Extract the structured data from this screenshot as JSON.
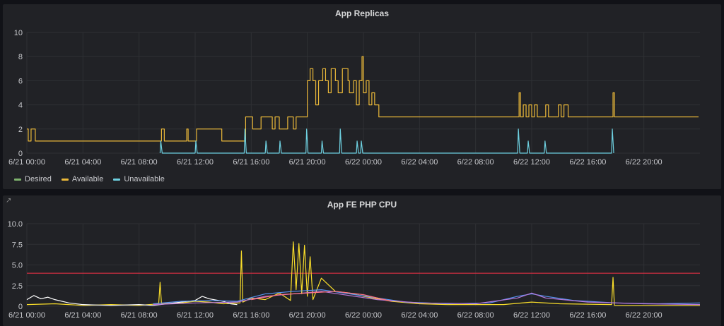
{
  "chart_data": [
    {
      "type": "line",
      "title": "App Replicas",
      "x_tick_labels": [
        "6/21 00:00",
        "6/21 04:00",
        "6/21 08:00",
        "6/21 12:00",
        "6/21 16:00",
        "6/21 20:00",
        "6/22 00:00",
        "6/22 04:00",
        "6/22 08:00",
        "6/22 12:00",
        "6/22 16:00",
        "6/22 20:00"
      ],
      "x_range_hours": [
        0,
        48
      ],
      "ylim": [
        0,
        10
      ],
      "y_ticks": [
        0,
        2,
        4,
        6,
        8,
        10
      ],
      "grid": true,
      "legend": "bottom-left",
      "series": [
        {
          "name": "Desired",
          "color": "#7eb26d",
          "values": []
        },
        {
          "name": "Available",
          "color": "#eab839",
          "points": [
            [
              0,
              2
            ],
            [
              0.1,
              1
            ],
            [
              0.3,
              2
            ],
            [
              0.6,
              1
            ],
            [
              9.5,
              1
            ],
            [
              9.6,
              2
            ],
            [
              9.8,
              1
            ],
            [
              11.3,
              1
            ],
            [
              11.4,
              2
            ],
            [
              11.5,
              1
            ],
            [
              12.0,
              1
            ],
            [
              12.1,
              2
            ],
            [
              13.8,
              2
            ],
            [
              13.9,
              1
            ],
            [
              15.5,
              1
            ],
            [
              15.6,
              3
            ],
            [
              16.1,
              2
            ],
            [
              16.6,
              2
            ],
            [
              16.7,
              3
            ],
            [
              17.5,
              2
            ],
            [
              17.7,
              3
            ],
            [
              18.0,
              2
            ],
            [
              18.6,
              3
            ],
            [
              19.0,
              2
            ],
            [
              19.2,
              3
            ],
            [
              19.9,
              3
            ],
            [
              20.0,
              6
            ],
            [
              20.2,
              7
            ],
            [
              20.4,
              6
            ],
            [
              20.6,
              4
            ],
            [
              20.8,
              6
            ],
            [
              21.1,
              7
            ],
            [
              21.3,
              6
            ],
            [
              21.5,
              5
            ],
            [
              21.7,
              7
            ],
            [
              22.0,
              6
            ],
            [
              22.2,
              5
            ],
            [
              22.5,
              7
            ],
            [
              22.9,
              6
            ],
            [
              23.0,
              5
            ],
            [
              23.3,
              6
            ],
            [
              23.5,
              4
            ],
            [
              23.7,
              6
            ],
            [
              23.9,
              8
            ],
            [
              24.0,
              5
            ],
            [
              24.2,
              6
            ],
            [
              24.4,
              4
            ],
            [
              24.6,
              5
            ],
            [
              24.8,
              4
            ],
            [
              25.1,
              3
            ],
            [
              35.0,
              3
            ],
            [
              35.1,
              5
            ],
            [
              35.2,
              3
            ],
            [
              35.4,
              4
            ],
            [
              35.6,
              3
            ],
            [
              35.8,
              4
            ],
            [
              36.0,
              3
            ],
            [
              36.2,
              4
            ],
            [
              36.4,
              3
            ],
            [
              37.0,
              4
            ],
            [
              37.2,
              3
            ],
            [
              37.9,
              4
            ],
            [
              38.1,
              3
            ],
            [
              38.3,
              4
            ],
            [
              38.6,
              3
            ],
            [
              41.7,
              3
            ],
            [
              41.8,
              5
            ],
            [
              41.9,
              3
            ],
            [
              47.9,
              3
            ]
          ]
        },
        {
          "name": "Unavailable",
          "color": "#6ed0e0",
          "points": [
            [
              9.5,
              0
            ],
            [
              9.55,
              1
            ],
            [
              9.65,
              0
            ],
            [
              12.0,
              0
            ],
            [
              12.05,
              1
            ],
            [
              12.15,
              0
            ],
            [
              15.5,
              0
            ],
            [
              15.55,
              2
            ],
            [
              15.65,
              0
            ],
            [
              17.0,
              0
            ],
            [
              17.05,
              1
            ],
            [
              17.15,
              0
            ],
            [
              18.0,
              0
            ],
            [
              18.05,
              1
            ],
            [
              18.15,
              0
            ],
            [
              19.9,
              0
            ],
            [
              19.95,
              2
            ],
            [
              20.05,
              0
            ],
            [
              21.0,
              0
            ],
            [
              21.05,
              1
            ],
            [
              21.15,
              0
            ],
            [
              22.3,
              0
            ],
            [
              22.35,
              2
            ],
            [
              22.45,
              0
            ],
            [
              23.5,
              0
            ],
            [
              23.55,
              1
            ],
            [
              23.65,
              0
            ],
            [
              23.8,
              0
            ],
            [
              23.85,
              1
            ],
            [
              23.95,
              0
            ],
            [
              35.0,
              0
            ],
            [
              35.05,
              2
            ],
            [
              35.15,
              0
            ],
            [
              35.7,
              0
            ],
            [
              35.75,
              1
            ],
            [
              35.85,
              0
            ],
            [
              36.9,
              0
            ],
            [
              36.95,
              1
            ],
            [
              37.05,
              0
            ],
            [
              41.7,
              0
            ],
            [
              41.75,
              2
            ],
            [
              41.85,
              0
            ]
          ]
        }
      ]
    },
    {
      "type": "line",
      "title": "App FE PHP CPU",
      "x_tick_labels": [
        "6/21 00:00",
        "6/21 04:00",
        "6/21 08:00",
        "6/21 12:00",
        "6/21 16:00",
        "6/21 20:00",
        "6/22 00:00",
        "6/22 04:00",
        "6/22 08:00",
        "6/22 12:00",
        "6/22 16:00",
        "6/22 20:00"
      ],
      "x_range_hours": [
        0,
        48
      ],
      "ylim": [
        0,
        10
      ],
      "y_ticks": [
        "0",
        "2.5",
        "5.0",
        "7.5",
        "10.0"
      ],
      "threshold": {
        "value": 4,
        "color": "#e02f44"
      },
      "grid": true,
      "series": [
        {
          "color": "#fade2a",
          "points": [
            [
              0,
              0.2
            ],
            [
              2,
              0.3
            ],
            [
              4,
              0.1
            ],
            [
              6,
              0.2
            ],
            [
              8,
              0.1
            ],
            [
              9.4,
              0.3
            ],
            [
              9.5,
              2.9
            ],
            [
              9.6,
              0.3
            ],
            [
              11,
              0.4
            ],
            [
              12,
              0.6
            ],
            [
              13,
              0.5
            ],
            [
              14,
              0.3
            ],
            [
              15.2,
              0.4
            ],
            [
              15.3,
              6.7
            ],
            [
              15.4,
              0.5
            ],
            [
              16,
              1.0
            ],
            [
              17,
              0.8
            ],
            [
              18,
              1.6
            ],
            [
              18.8,
              0.7
            ],
            [
              19.0,
              7.8
            ],
            [
              19.2,
              2.0
            ],
            [
              19.4,
              7.6
            ],
            [
              19.6,
              1.5
            ],
            [
              19.8,
              7.4
            ],
            [
              20.0,
              1.2
            ],
            [
              20.2,
              6.0
            ],
            [
              20.4,
              0.8
            ],
            [
              21,
              3.4
            ],
            [
              22,
              1.8
            ],
            [
              23,
              1.6
            ],
            [
              24,
              1.2
            ],
            [
              25,
              0.9
            ],
            [
              26,
              0.6
            ],
            [
              28,
              0.3
            ],
            [
              30,
              0.2
            ],
            [
              34,
              0.2
            ],
            [
              36,
              0.5
            ],
            [
              38,
              0.3
            ],
            [
              41.7,
              0.2
            ],
            [
              41.8,
              3.5
            ],
            [
              41.9,
              0.1
            ],
            [
              48,
              0.1
            ]
          ]
        },
        {
          "color": "#ffffff",
          "points": [
            [
              0,
              0.8
            ],
            [
              0.5,
              1.3
            ],
            [
              1,
              0.9
            ],
            [
              1.5,
              1.1
            ],
            [
              2,
              0.8
            ],
            [
              3,
              0.4
            ],
            [
              4,
              0.2
            ],
            [
              6,
              0.1
            ],
            [
              8,
              0.2
            ],
            [
              9,
              0.1
            ],
            [
              10,
              0.3
            ],
            [
              11,
              0.5
            ],
            [
              12,
              0.7
            ],
            [
              12.5,
              1.2
            ],
            [
              13,
              0.9
            ],
            [
              14,
              0.6
            ],
            [
              14.5,
              0.3
            ],
            [
              15,
              0.2
            ]
          ]
        },
        {
          "color": "#5794f2",
          "points": [
            [
              9,
              0.3
            ],
            [
              11,
              0.6
            ],
            [
              13,
              0.7
            ],
            [
              15,
              0.6
            ],
            [
              17,
              1.5
            ],
            [
              19,
              1.8
            ],
            [
              21,
              2.0
            ],
            [
              23,
              1.5
            ],
            [
              25,
              1.0
            ],
            [
              27,
              0.5
            ],
            [
              30,
              0.3
            ],
            [
              33,
              0.4
            ],
            [
              35,
              1.2
            ],
            [
              36,
              1.5
            ],
            [
              37,
              1.2
            ],
            [
              39,
              0.7
            ],
            [
              42,
              0.4
            ],
            [
              45,
              0.3
            ],
            [
              48,
              0.4
            ]
          ]
        },
        {
          "color": "#b877d9",
          "points": [
            [
              9,
              0.2
            ],
            [
              12,
              0.4
            ],
            [
              15,
              0.5
            ],
            [
              17,
              1.2
            ],
            [
              19,
              1.5
            ],
            [
              21,
              1.8
            ],
            [
              23,
              1.3
            ],
            [
              25,
              0.8
            ],
            [
              28,
              0.4
            ],
            [
              32,
              0.3
            ],
            [
              35,
              1.0
            ],
            [
              36,
              1.6
            ],
            [
              37,
              1.0
            ],
            [
              40,
              0.5
            ],
            [
              44,
              0.3
            ],
            [
              48,
              0.2
            ]
          ]
        },
        {
          "color": "#ff7383",
          "points": [
            [
              16,
              0.8
            ],
            [
              18,
              1.4
            ],
            [
              20,
              1.6
            ],
            [
              22,
              1.8
            ],
            [
              24,
              1.4
            ],
            [
              26,
              0.6
            ]
          ]
        }
      ]
    }
  ]
}
